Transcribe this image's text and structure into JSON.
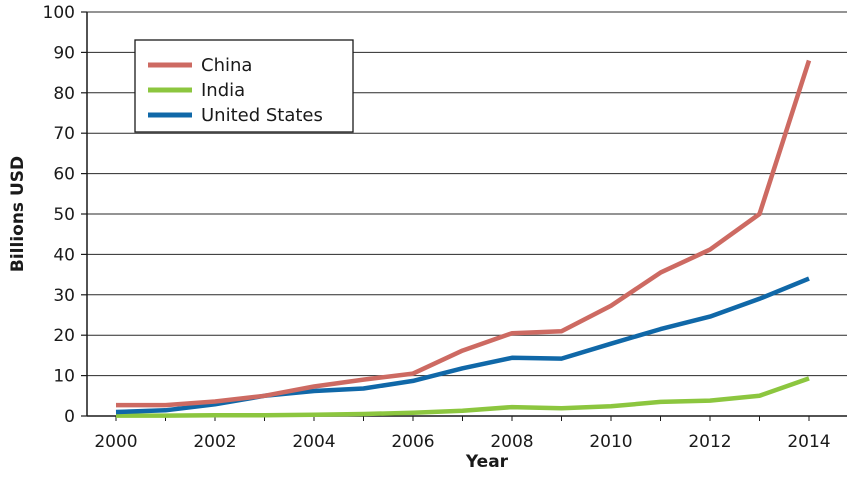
{
  "chart_data": {
    "type": "line",
    "title": "",
    "xlabel": "Year",
    "ylabel": "Billions USD",
    "x": [
      2000,
      2001,
      2002,
      2003,
      2004,
      2005,
      2006,
      2007,
      2008,
      2009,
      2010,
      2011,
      2012,
      2013,
      2014
    ],
    "x_ticks": [
      "2000",
      "2002",
      "2004",
      "2006",
      "2008",
      "2010",
      "2012",
      "2014"
    ],
    "y_ticks": [
      "0",
      "10",
      "20",
      "30",
      "40",
      "50",
      "60",
      "70",
      "80",
      "90",
      "100"
    ],
    "xlim": [
      2000,
      2014
    ],
    "ylim": [
      0,
      100
    ],
    "grid": "horizontal",
    "legend_position": "top-left",
    "series": [
      {
        "name": "China",
        "color": "#cd6a62",
        "values": [
          2.7,
          2.7,
          3.6,
          5.0,
          7.3,
          9.0,
          10.5,
          16.2,
          20.5,
          21.0,
          27.3,
          35.5,
          41.2,
          50.0,
          88.0
        ]
      },
      {
        "name": "India",
        "color": "#8cc63f",
        "values": [
          0.1,
          0.1,
          0.2,
          0.2,
          0.3,
          0.5,
          0.8,
          1.3,
          2.2,
          1.9,
          2.4,
          3.5,
          3.8,
          5.0,
          9.3
        ]
      },
      {
        "name": "United States",
        "color": "#1068a8",
        "values": [
          1.0,
          1.4,
          2.9,
          5.0,
          6.2,
          6.8,
          8.7,
          11.8,
          14.4,
          14.2,
          17.9,
          21.5,
          24.6,
          29.0,
          34.0
        ]
      }
    ]
  }
}
